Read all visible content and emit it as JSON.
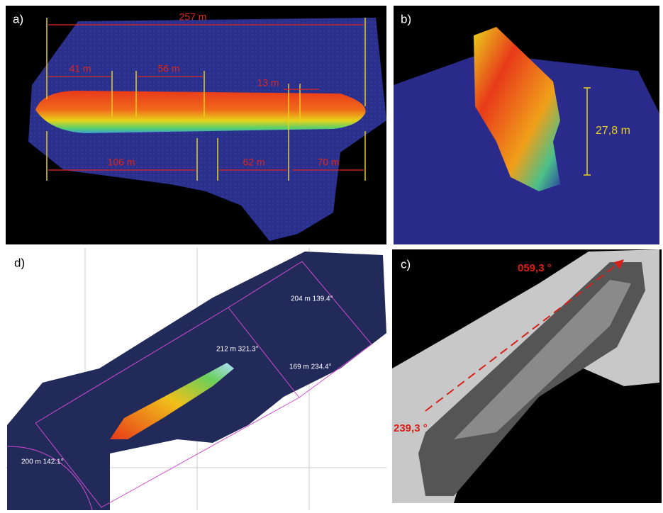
{
  "panels": [
    {
      "label": "a)",
      "annotations": [
        "257 m",
        "41 m",
        "56 m",
        "13 m",
        "106 m",
        "62 m",
        "70 m"
      ]
    },
    {
      "label": "b)",
      "annotations": [
        "27,8 m"
      ]
    },
    {
      "label": "c)",
      "annotations": [
        "059,3 °",
        "239,3 °"
      ]
    },
    {
      "label": "d)",
      "annotations": [
        "204 m 139.4°",
        "212 m 321.3°",
        "169 m 234.4°",
        "200 m 142.1°"
      ]
    }
  ]
}
